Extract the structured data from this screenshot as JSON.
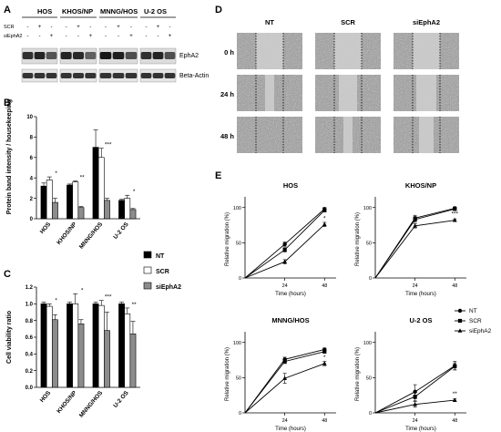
{
  "panels": {
    "A": {
      "letter": "A",
      "cell_lines": [
        "HOS",
        "KHOS/NP",
        "MNNG/HOS",
        "U-2 OS"
      ],
      "row_labels": [
        "SCR",
        "siEphA2"
      ],
      "lane_signs": {
        "SCR": [
          "-",
          "+",
          "-"
        ],
        "siEphA2": [
          "-",
          "-",
          "+"
        ]
      },
      "blot_labels": [
        "EphA2",
        "Beta-Actin"
      ]
    },
    "B": {
      "letter": "B",
      "ylabel": "Protein band intensity / housekeeping",
      "significance": [
        "*",
        "**",
        "***",
        "*"
      ]
    },
    "C": {
      "letter": "C",
      "ylabel": "Cell viability ratio",
      "significance": [
        "*",
        "*",
        "***",
        "**"
      ]
    },
    "D": {
      "letter": "D",
      "columns": [
        "NT",
        "SCR",
        "siEphA2"
      ],
      "rows": [
        "0 h",
        "24 h",
        "48 h"
      ]
    },
    "E": {
      "letter": "E",
      "titles": [
        "HOS",
        "KHOS/NP",
        "MNNG/HOS",
        "U-2 OS"
      ],
      "ylabel": "Relative migration (%)",
      "xlabel": "Time (hours)",
      "significance": [
        "*",
        "***",
        "*",
        "**"
      ]
    },
    "legend_bc": [
      "NT",
      "SCR",
      "siEphA2"
    ],
    "legend_e": [
      "NT",
      "SCR",
      "siEphA2"
    ]
  },
  "chart_data": [
    {
      "id": "B",
      "type": "bar",
      "categories": [
        "HOS",
        "KHOS/NP",
        "MNNG/HOS",
        "U-2 OS"
      ],
      "series": [
        {
          "name": "NT",
          "values": [
            3.2,
            3.3,
            7.0,
            1.8
          ],
          "errors": [
            0.3,
            0.1,
            1.7,
            0.1
          ],
          "color": "#000000"
        },
        {
          "name": "SCR",
          "values": [
            3.8,
            3.6,
            6.0,
            2.0
          ],
          "errors": [
            0.3,
            0.1,
            0.9,
            0.3
          ],
          "color": "#ffffff"
        },
        {
          "name": "siEphA2",
          "values": [
            1.6,
            1.1,
            1.8,
            0.9
          ],
          "errors": [
            0.4,
            0.1,
            0.2,
            0.1
          ],
          "color": "#8c8c8c"
        }
      ],
      "yticks": [
        0,
        2,
        4,
        6,
        8,
        10
      ],
      "ylim": [
        0,
        10
      ]
    },
    {
      "id": "C",
      "type": "bar",
      "categories": [
        "HOS",
        "KHOS/NP",
        "MNNG/HOS",
        "U-2 OS"
      ],
      "series": [
        {
          "name": "NT",
          "values": [
            1.0,
            1.0,
            1.0,
            1.0
          ],
          "errors": [
            0.02,
            0.02,
            0.02,
            0.02
          ],
          "color": "#000000"
        },
        {
          "name": "SCR",
          "values": [
            0.97,
            1.0,
            0.98,
            0.88
          ],
          "errors": [
            0.03,
            0.12,
            0.06,
            0.07
          ],
          "color": "#ffffff"
        },
        {
          "name": "siEphA2",
          "values": [
            0.81,
            0.76,
            0.68,
            0.64
          ],
          "errors": [
            0.06,
            0.05,
            0.22,
            0.15
          ],
          "color": "#8c8c8c"
        }
      ],
      "yticks": [
        0.0,
        0.2,
        0.4,
        0.6,
        0.8,
        1.0,
        1.2
      ],
      "ylim": [
        0,
        1.2
      ]
    },
    {
      "id": "E-HOS",
      "type": "line",
      "title": "HOS",
      "x": [
        0,
        24,
        48
      ],
      "series": [
        {
          "name": "NT",
          "values": [
            0,
            48,
            98
          ],
          "errors": [
            0,
            3,
            2
          ]
        },
        {
          "name": "SCR",
          "values": [
            0,
            40,
            96
          ],
          "errors": [
            0,
            3,
            2
          ]
        },
        {
          "name": "siEphA2",
          "values": [
            0,
            23,
            76
          ],
          "errors": [
            0,
            3,
            3
          ]
        }
      ],
      "xticks": [
        24,
        48
      ],
      "yticks": [
        0,
        50,
        100
      ],
      "xlim": [
        0,
        55
      ],
      "ylim": [
        0,
        110
      ]
    },
    {
      "id": "E-KHOS/NP",
      "type": "line",
      "title": "KHOS/NP",
      "x": [
        0,
        24,
        48
      ],
      "series": [
        {
          "name": "NT",
          "values": [
            0,
            85,
            99
          ],
          "errors": [
            0,
            4,
            2
          ]
        },
        {
          "name": "SCR",
          "values": [
            0,
            83,
            98
          ],
          "errors": [
            0,
            4,
            2
          ]
        },
        {
          "name": "siEphA2",
          "values": [
            0,
            74,
            82
          ],
          "errors": [
            0,
            3,
            2
          ]
        }
      ],
      "xticks": [
        24,
        48
      ],
      "yticks": [
        0,
        50,
        100
      ],
      "xlim": [
        0,
        55
      ],
      "ylim": [
        0,
        110
      ]
    },
    {
      "id": "E-MNNG/HOS",
      "type": "line",
      "title": "MNNG/HOS",
      "x": [
        0,
        24,
        48
      ],
      "series": [
        {
          "name": "NT",
          "values": [
            0,
            76,
            90
          ],
          "errors": [
            0,
            3,
            2
          ]
        },
        {
          "name": "SCR",
          "values": [
            0,
            73,
            87
          ],
          "errors": [
            0,
            3,
            2
          ]
        },
        {
          "name": "siEphA2",
          "values": [
            0,
            49,
            70
          ],
          "errors": [
            0,
            7,
            3
          ]
        }
      ],
      "xticks": [
        24,
        48
      ],
      "yticks": [
        0,
        50,
        100
      ],
      "xlim": [
        0,
        55
      ],
      "ylim": [
        0,
        110
      ]
    },
    {
      "id": "E-U-2 OS",
      "type": "line",
      "title": "U-2 OS",
      "x": [
        0,
        24,
        48
      ],
      "series": [
        {
          "name": "NT",
          "values": [
            0,
            30,
            67
          ],
          "errors": [
            0,
            10,
            6
          ]
        },
        {
          "name": "SCR",
          "values": [
            0,
            23,
            66
          ],
          "errors": [
            0,
            6,
            5
          ]
        },
        {
          "name": "siEphA2",
          "values": [
            0,
            12,
            18
          ],
          "errors": [
            0,
            4,
            2
          ]
        }
      ],
      "xticks": [
        24,
        48
      ],
      "yticks": [
        0,
        50,
        100
      ],
      "xlim": [
        0,
        55
      ],
      "ylim": [
        0,
        110
      ]
    }
  ]
}
